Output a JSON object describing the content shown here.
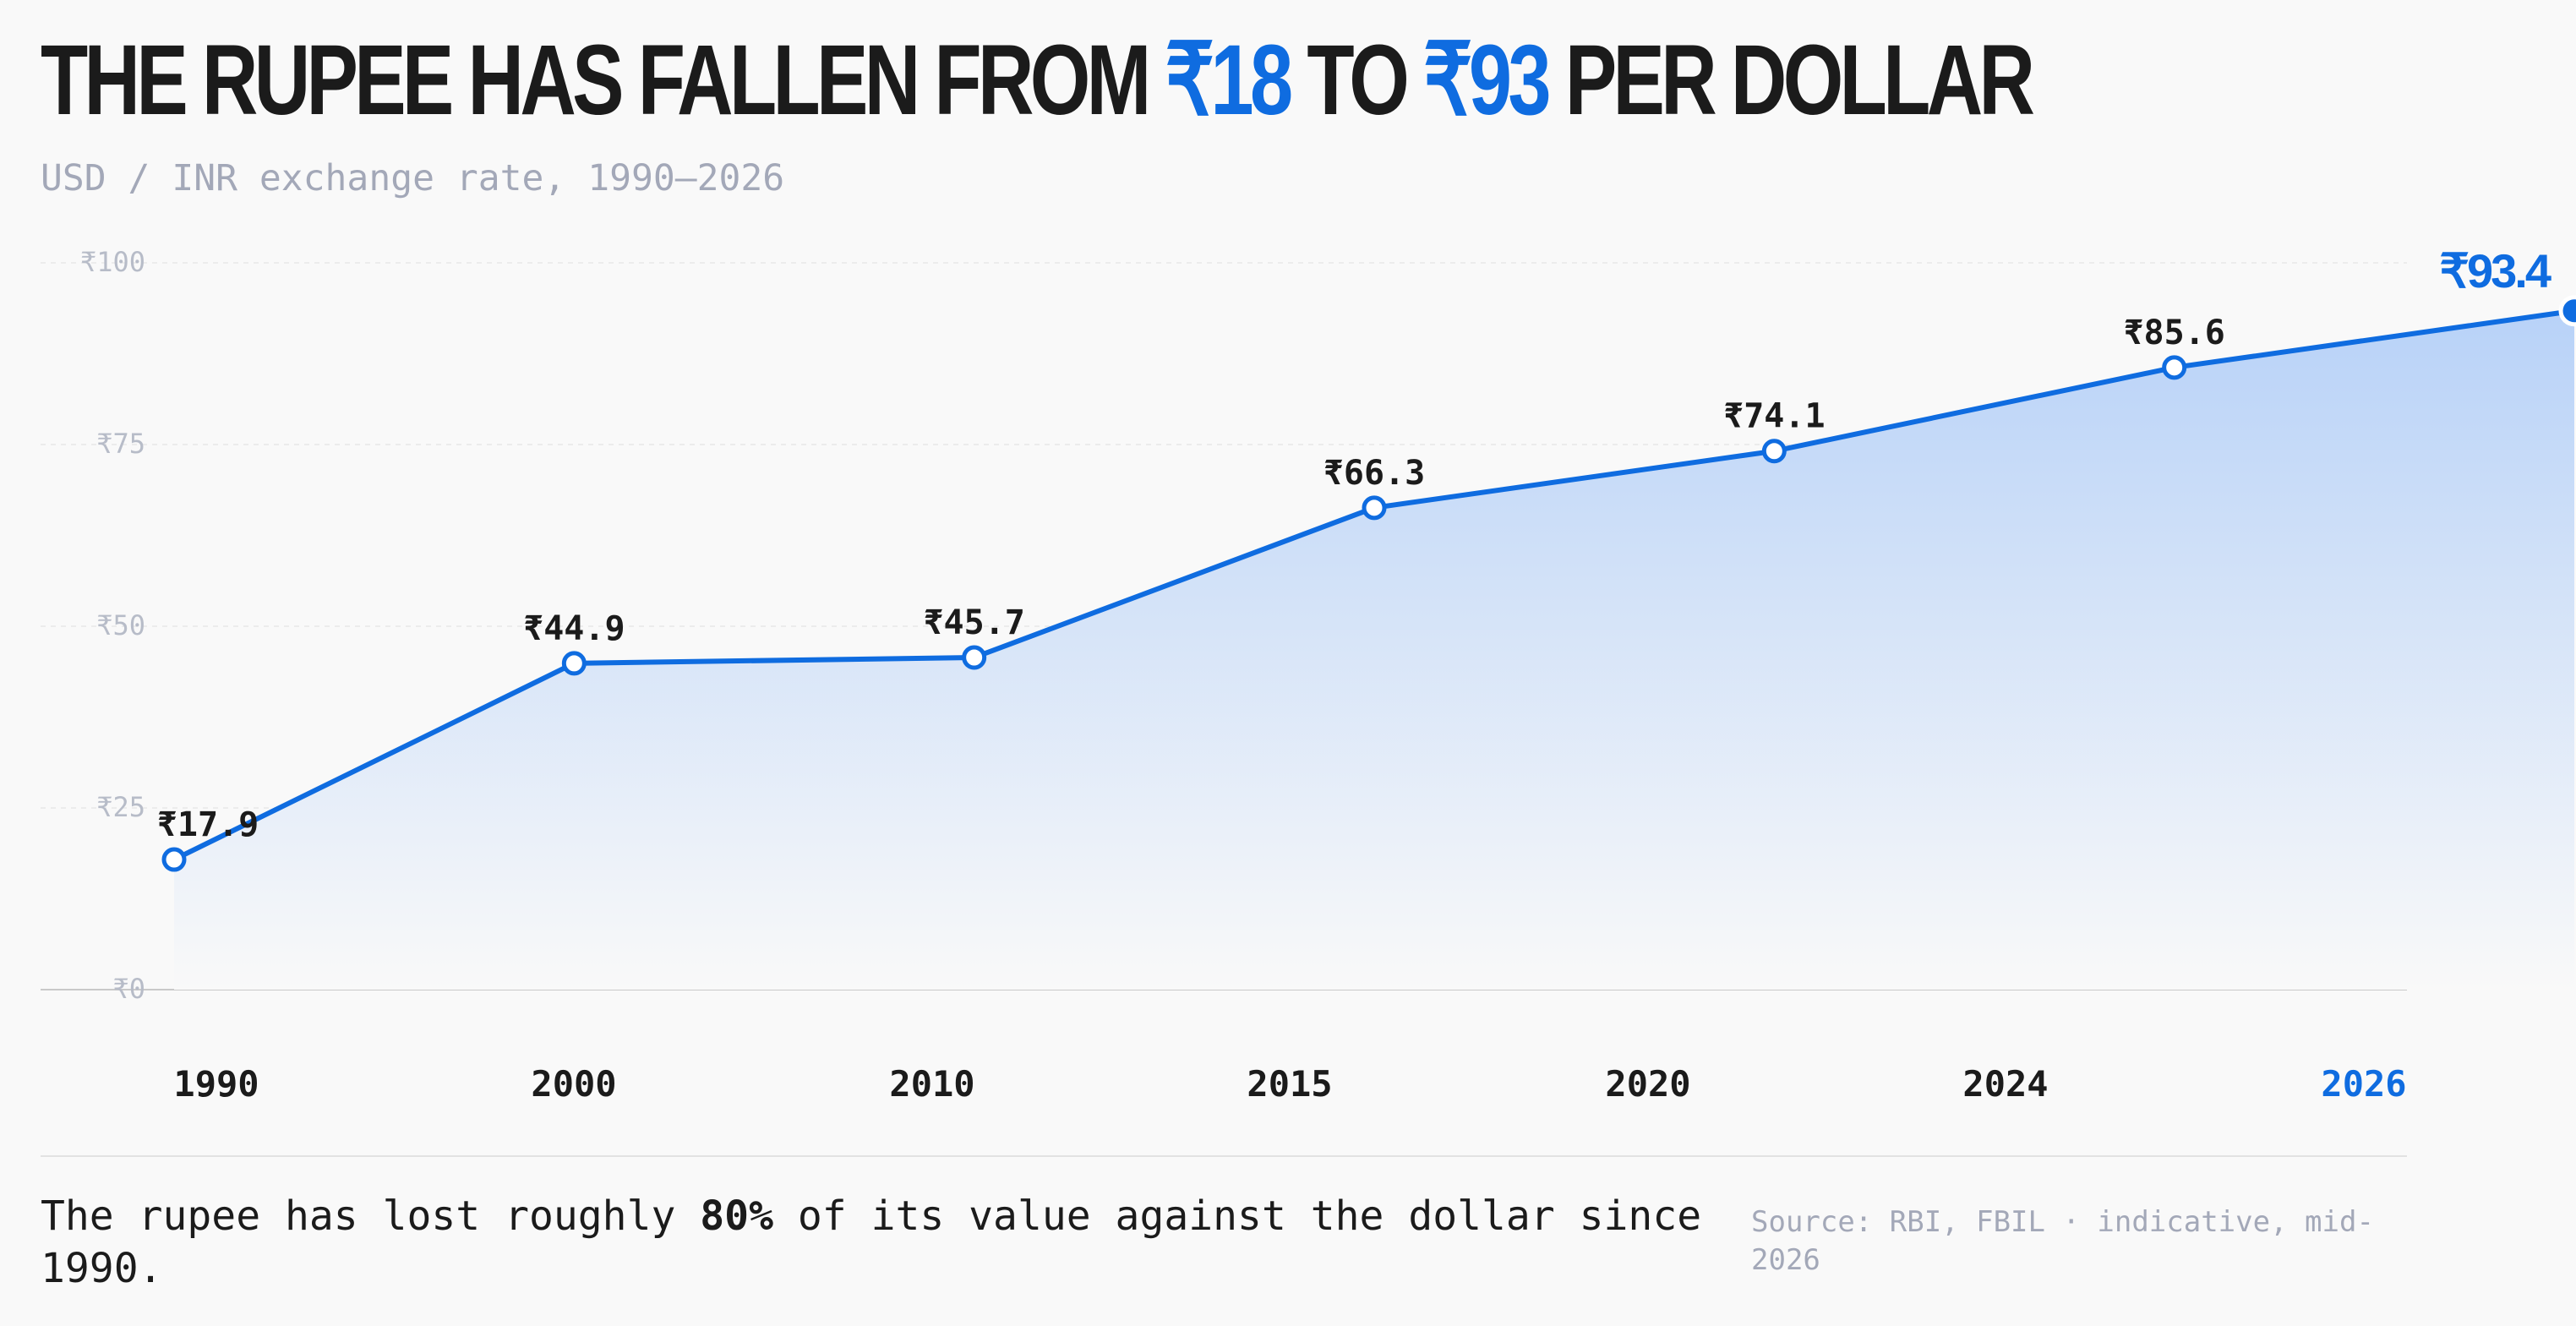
{
  "header": {
    "title_pre": "The rupee has fallen from ",
    "title_from": "₹18",
    "title_mid": " to ",
    "title_to": "₹93",
    "title_post": " per dollar",
    "subtitle": "USD / INR exchange rate, 1990–2026"
  },
  "colors": {
    "accent": "#0f6ce0",
    "text": "#1b1b1b",
    "muted": "#a3a8b8",
    "area_top": "#b8d2f8",
    "area_bottom": "#f9f9f9"
  },
  "chart_data": {
    "type": "area",
    "categories": [
      "1990",
      "2000",
      "2010",
      "2015",
      "2020",
      "2024",
      "2026"
    ],
    "series": [
      {
        "values": [
          17.9,
          44.9,
          45.7,
          66.3,
          74.1,
          85.6,
          93.4
        ]
      }
    ],
    "data_labels": [
      "₹17.9",
      "₹44.9",
      "₹45.7",
      "₹66.3",
      "₹74.1",
      "₹85.6",
      "₹93.4"
    ],
    "yticks": [
      0,
      25,
      50,
      75,
      100
    ],
    "ytick_labels": [
      "₹0",
      "₹25",
      "₹50",
      "₹75",
      "₹100"
    ],
    "ylim": [
      0,
      100
    ],
    "highlight_last": true,
    "grid": true
  },
  "footer": {
    "note_pre": "The rupee has lost roughly ",
    "note_bold": "80%",
    "note_post": " of its value against the dollar since 1990.",
    "source": "Source: RBI, FBIL · indicative, mid-2026"
  }
}
